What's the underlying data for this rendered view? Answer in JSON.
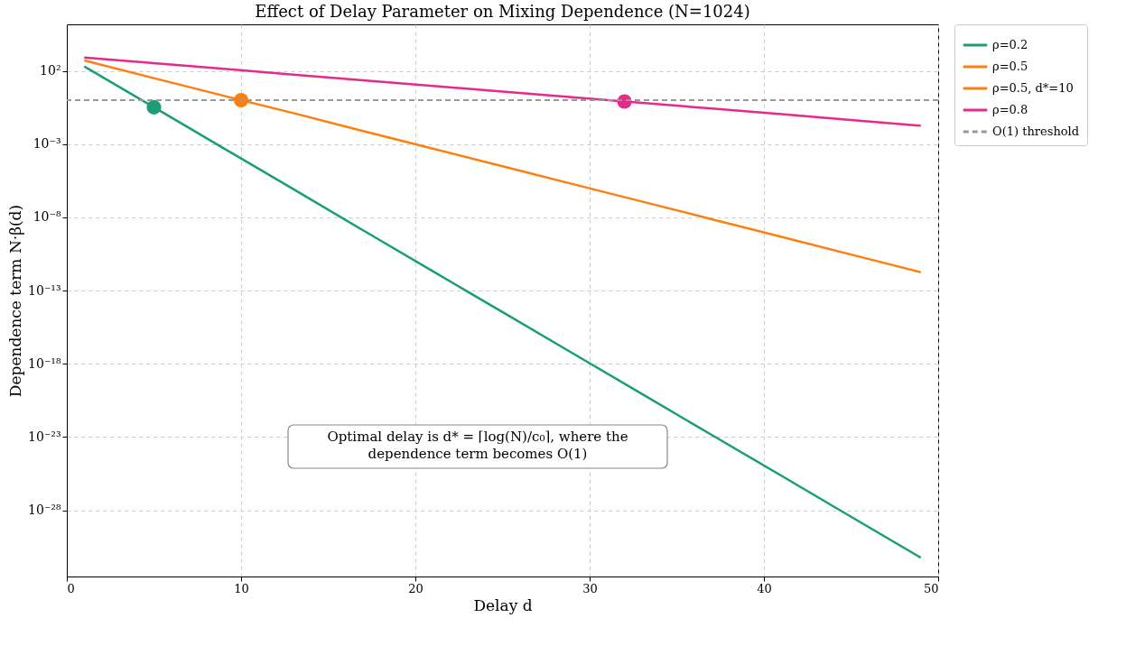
{
  "chart_data": {
    "type": "line",
    "title": "Effect of Delay Parameter on Mixing Dependence (N=1024)",
    "xlabel": "Delay d",
    "ylabel": "Dependence term N·β(d)",
    "log": "y",
    "grid": true,
    "legend": "top right",
    "xlim": [
      0,
      50
    ],
    "xticks": [
      0,
      10,
      20,
      30,
      40,
      50
    ],
    "ylim": [
      3e-33,
      150000
    ],
    "yticks": [
      {
        "value": 100,
        "label": "10²"
      },
      {
        "value": 0.001,
        "label": "10⁻³"
      },
      {
        "value": 1e-08,
        "label": "10⁻⁸"
      },
      {
        "value": 1e-13,
        "label": "10⁻¹³"
      },
      {
        "value": 1e-18,
        "label": "10⁻¹⁸"
      },
      {
        "value": 1e-23,
        "label": "10⁻²³"
      },
      {
        "value": 1e-28,
        "label": "10⁻²⁸"
      }
    ],
    "series": [
      {
        "name": "ρ=0.2",
        "type": "line",
        "color": "#1b9e77",
        "x": [
          1,
          5,
          9,
          13,
          17,
          21,
          25,
          29,
          33,
          37,
          41,
          45,
          49
        ],
        "values": [
          200,
          0.33,
          0.00052,
          8.4e-07,
          1.3e-09,
          2.1e-12,
          3.4e-15,
          5.5e-18,
          8.8e-21,
          1.4e-23,
          2.3e-26,
          3.6e-29,
          5.8e-32
        ]
      },
      {
        "name": "ρ=0.5",
        "type": "line",
        "color": "#ff7f0e",
        "x": [
          1,
          5,
          9,
          13,
          17,
          21,
          25,
          29,
          33,
          37,
          41,
          45,
          49
        ],
        "values": [
          510,
          32,
          2,
          0.13,
          0.0078,
          0.00049,
          3.1e-05,
          1.9e-06,
          1.2e-07,
          7.5e-09,
          4.7e-10,
          2.9e-11,
          1.8e-12
        ]
      },
      {
        "name": "ρ=0.5, d*=10",
        "type": "scatter",
        "color": "#ff7f0e",
        "x": [
          10
        ],
        "values": [
          1
        ]
      },
      {
        "name": "ρ=0.8",
        "type": "line",
        "color": "#e7298a",
        "x": [
          1,
          5,
          9,
          13,
          17,
          21,
          25,
          29,
          33,
          37,
          41,
          45,
          49
        ],
        "values": [
          820,
          340,
          140,
          56,
          23,
          9.4,
          3.9,
          1.6,
          0.65,
          0.27,
          0.11,
          0.045,
          0.018
        ]
      },
      {
        "type": "scatter",
        "color": "#1b9e77",
        "x": [
          5
        ],
        "values": [
          0.33
        ]
      },
      {
        "type": "scatter",
        "color": "#e7298a",
        "x": [
          32
        ],
        "values": [
          0.81
        ]
      }
    ],
    "ref_lines": [
      {
        "axis": "y",
        "value": 1,
        "label": "O(1) threshold",
        "color": "#999999",
        "line_style": "dashed"
      }
    ],
    "annotations": [
      "Optimal delay is d* = ⌈log(N)/c₀⌉, where the\ndependence term becomes O(1)"
    ]
  }
}
